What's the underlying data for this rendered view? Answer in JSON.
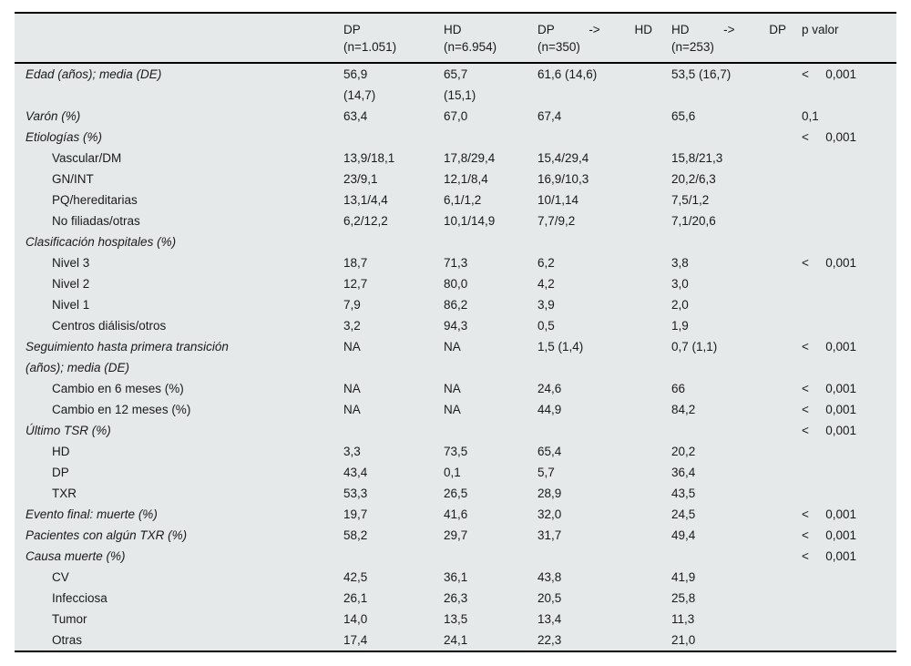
{
  "table": {
    "background_color": "#e6e9ea",
    "border_color": "#000000",
    "header": {
      "columns": [
        {
          "line1": "DP",
          "line2": "(n=1.051)"
        },
        {
          "line1": "HD",
          "line2": "(n=6.954)"
        },
        {
          "line1": "DP -> HD",
          "line2": "(n=350)"
        },
        {
          "line1": "HD -> DP",
          "line2": "(n=253)"
        },
        {
          "line1": "p valor",
          "line2": ""
        }
      ]
    },
    "rows": [
      {
        "label": "Edad (años); media (DE)",
        "type": "group",
        "values": [
          "56,9\n(14,7)",
          "65,7\n(15,1)",
          "61,6 (14,6)",
          "53,5 (16,7)"
        ],
        "p": "< 0,001"
      },
      {
        "label": "Varón (%)",
        "type": "group",
        "values": [
          "63,4",
          "67,0",
          "67,4",
          "65,6"
        ],
        "p": "0,1"
      },
      {
        "label": "Etiologías (%)",
        "type": "group",
        "values": [
          "",
          "",
          "",
          ""
        ],
        "p": "< 0,001"
      },
      {
        "label": "Vascular/DM",
        "type": "sub",
        "values": [
          "13,9/18,1",
          "17,8/29,4",
          "15,4/29,4",
          "15,8/21,3"
        ],
        "p": ""
      },
      {
        "label": "GN/INT",
        "type": "sub",
        "values": [
          "23/9,1",
          "12,1/8,4",
          "16,9/10,3",
          "20,2/6,3"
        ],
        "p": ""
      },
      {
        "label": "PQ/hereditarias",
        "type": "sub",
        "values": [
          "13,1/4,4",
          "6,1/1,2",
          "10/1,14",
          "7,5/1,2"
        ],
        "p": ""
      },
      {
        "label": "No filiadas/otras",
        "type": "sub",
        "values": [
          "6,2/12,2",
          "10,1/14,9",
          "7,7/9,2",
          "7,1/20,6"
        ],
        "p": ""
      },
      {
        "label": "Clasificación hospitales (%)",
        "type": "group",
        "values": [
          "",
          "",
          "",
          ""
        ],
        "p": ""
      },
      {
        "label": "Nivel 3",
        "type": "sub",
        "values": [
          "18,7",
          "71,3",
          "6,2",
          "3,8"
        ],
        "p": "< 0,001"
      },
      {
        "label": "Nivel 2",
        "type": "sub",
        "values": [
          "12,7",
          "80,0",
          "4,2",
          "3,0"
        ],
        "p": ""
      },
      {
        "label": "Nivel 1",
        "type": "sub",
        "values": [
          "7,9",
          "86,2",
          "3,9",
          "2,0"
        ],
        "p": ""
      },
      {
        "label": "Centros diálisis/otros",
        "type": "sub",
        "values": [
          "3,2",
          "94,3",
          "0,5",
          "1,9"
        ],
        "p": ""
      },
      {
        "label": "Seguimiento hasta primera transición\n(años); media (DE)",
        "type": "group",
        "values": [
          "NA",
          "NA",
          "1,5 (1,4)",
          "0,7 (1,1)"
        ],
        "p": "< 0,001"
      },
      {
        "label": "Cambio en 6 meses (%)",
        "type": "sub",
        "values": [
          "NA",
          "NA",
          "24,6",
          "66"
        ],
        "p": "< 0,001"
      },
      {
        "label": "Cambio en 12 meses (%)",
        "type": "sub",
        "values": [
          "NA",
          "NA",
          "44,9",
          "84,2"
        ],
        "p": "< 0,001"
      },
      {
        "label": "Último TSR (%)",
        "type": "group",
        "values": [
          "",
          "",
          "",
          ""
        ],
        "p": "< 0,001"
      },
      {
        "label": "HD",
        "type": "sub",
        "values": [
          "3,3",
          "73,5",
          "65,4",
          "20,2"
        ],
        "p": ""
      },
      {
        "label": "DP",
        "type": "sub",
        "values": [
          "43,4",
          "0,1",
          "5,7",
          "36,4"
        ],
        "p": ""
      },
      {
        "label": "TXR",
        "type": "sub",
        "values": [
          "53,3",
          "26,5",
          "28,9",
          "43,5"
        ],
        "p": ""
      },
      {
        "label": "Evento final: muerte (%)",
        "type": "group",
        "values": [
          "19,7",
          "41,6",
          "32,0",
          "24,5"
        ],
        "p": "< 0,001"
      },
      {
        "label": "Pacientes con algún TXR (%)",
        "type": "group",
        "values": [
          "58,2",
          "29,7",
          "31,7",
          "49,4"
        ],
        "p": "< 0,001"
      },
      {
        "label": "Causa muerte (%)",
        "type": "group",
        "values": [
          "",
          "",
          "",
          ""
        ],
        "p": "< 0,001"
      },
      {
        "label": "CV",
        "type": "sub",
        "values": [
          "42,5",
          "36,1",
          "43,8",
          "41,9"
        ],
        "p": ""
      },
      {
        "label": "Infecciosa",
        "type": "sub",
        "values": [
          "26,1",
          "26,3",
          "20,5",
          "25,8"
        ],
        "p": ""
      },
      {
        "label": "Tumor",
        "type": "sub",
        "values": [
          "14,0",
          "13,5",
          "13,4",
          "11,3"
        ],
        "p": ""
      },
      {
        "label": "Otras",
        "type": "sub",
        "values": [
          "17,4",
          "24,1",
          "22,3",
          "21,0"
        ],
        "p": ""
      }
    ]
  }
}
